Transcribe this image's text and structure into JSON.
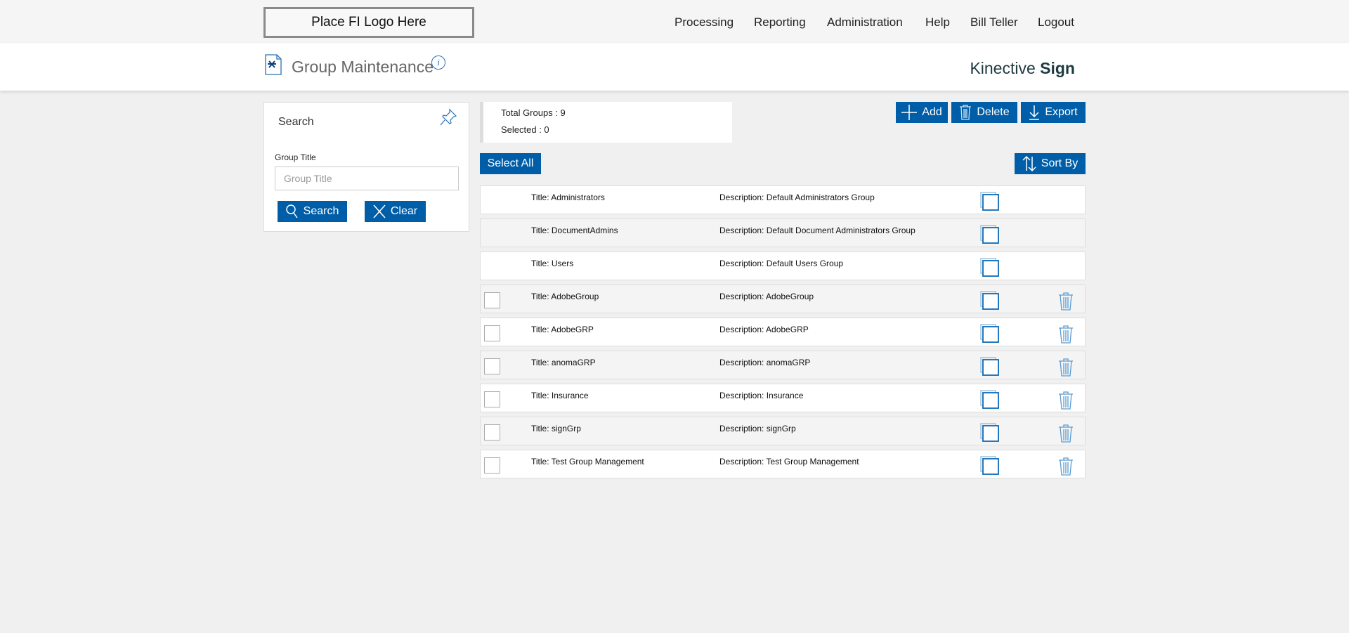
{
  "header": {
    "logo_text": "Place FI Logo Here",
    "nav": [
      "Processing",
      "Reporting",
      "Administration",
      "Help",
      "Bill Teller",
      "Logout"
    ]
  },
  "page": {
    "title": "Group Maintenance",
    "brand_light": "Kinective",
    "brand_bold": "Sign"
  },
  "search": {
    "heading": "Search",
    "field_label": "Group Title",
    "placeholder": "Group Title",
    "search_label": "Search",
    "clear_label": "Clear"
  },
  "summary": {
    "total": "Total Groups : 9",
    "selected": "Selected : 0"
  },
  "toolbar": {
    "add": "Add",
    "delete": "Delete",
    "export": "Export",
    "select_all": "Select All",
    "sort_by": "Sort By"
  },
  "colors": {
    "accent": "#005ea8"
  },
  "groups": [
    {
      "title": "Title:  Administrators",
      "description": "Description: Default Administrators Group",
      "deletable": false
    },
    {
      "title": "Title:  DocumentAdmins",
      "description": "Description: Default Document Administrators Group",
      "deletable": false
    },
    {
      "title": "Title:  Users",
      "description": "Description: Default Users Group",
      "deletable": false
    },
    {
      "title": "Title:  AdobeGroup",
      "description": "Description: AdobeGroup",
      "deletable": true
    },
    {
      "title": "Title:  AdobeGRP",
      "description": "Description: AdobeGRP",
      "deletable": true
    },
    {
      "title": "Title:  anomaGRP",
      "description": "Description: anomaGRP",
      "deletable": true
    },
    {
      "title": "Title:  Insurance",
      "description": "Description: Insurance",
      "deletable": true
    },
    {
      "title": "Title:  signGrp",
      "description": "Description: signGrp",
      "deletable": true
    },
    {
      "title": "Title:  Test Group Management",
      "description": "Description: Test Group Management",
      "deletable": true
    }
  ]
}
